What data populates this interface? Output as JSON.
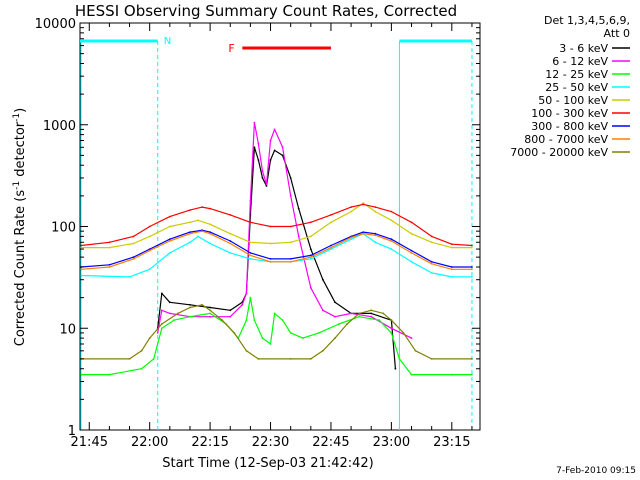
{
  "chart_data": {
    "type": "line",
    "title": "HESSI Observing Summary Count Rates, Corrected",
    "xlabel": "Start Time (12-Sep-03 21:42:42)",
    "ylabel": "Corrected Count Rate (s",
    "ylabel_sup1": "-1",
    "ylabel_mid": " detector",
    "ylabel_sup2": "-1",
    "ylabel_end": ")",
    "footer": "7-Feb-2010 09:15",
    "y_scale": "log",
    "ylim": [
      1,
      10000
    ],
    "xlim": [
      "21:42:42",
      "23:22:00"
    ],
    "x_tick_labels": [
      "21:45",
      "22:00",
      "22:15",
      "22:30",
      "22:45",
      "23:00",
      "23:15"
    ],
    "y_tick_labels": [
      "1",
      "10",
      "100",
      "1000",
      "10000"
    ],
    "legend_header": [
      "Det 1,3,4,5,6,9,",
      "Att 0"
    ],
    "legend_position": "right-outside",
    "annotations": {
      "night_label": "N",
      "night_intervals": [
        [
          "21:42:42",
          "22:02:00"
        ],
        [
          "23:02:00",
          "23:20:00"
        ]
      ],
      "flare_label": "F",
      "flare_interval": [
        "22:23:00",
        "22:45:00"
      ]
    },
    "series": [
      {
        "name": "3 - 6 keV",
        "color": "#000000",
        "points": [
          [
            "22:02",
            10
          ],
          [
            "22:03",
            22
          ],
          [
            "22:05",
            18
          ],
          [
            "22:10",
            17
          ],
          [
            "22:15",
            16
          ],
          [
            "22:20",
            15
          ],
          [
            "22:23",
            18
          ],
          [
            "22:24",
            22
          ],
          [
            "22:25",
            130
          ],
          [
            "22:26",
            600
          ],
          [
            "22:27",
            450
          ],
          [
            "22:28",
            300
          ],
          [
            "22:29",
            250
          ],
          [
            "22:30",
            450
          ],
          [
            "22:31",
            560
          ],
          [
            "22:33",
            500
          ],
          [
            "22:35",
            300
          ],
          [
            "22:37",
            150
          ],
          [
            "22:40",
            60
          ],
          [
            "22:43",
            30
          ],
          [
            "22:46",
            18
          ],
          [
            "22:50",
            14
          ],
          [
            "22:55",
            14
          ],
          [
            "23:00",
            12
          ],
          [
            "23:01",
            4
          ]
        ]
      },
      {
        "name": "6 - 12 keV",
        "color": "#ff00ff",
        "points": [
          [
            "22:02",
            9
          ],
          [
            "22:03",
            15
          ],
          [
            "22:05",
            14
          ],
          [
            "22:10",
            13
          ],
          [
            "22:15",
            13
          ],
          [
            "22:20",
            13
          ],
          [
            "22:23",
            17
          ],
          [
            "22:24",
            22
          ],
          [
            "22:25",
            180
          ],
          [
            "22:26",
            1050
          ],
          [
            "22:27",
            650
          ],
          [
            "22:28",
            350
          ],
          [
            "22:29",
            260
          ],
          [
            "22:30",
            700
          ],
          [
            "22:31",
            900
          ],
          [
            "22:33",
            600
          ],
          [
            "22:35",
            200
          ],
          [
            "22:37",
            80
          ],
          [
            "22:40",
            25
          ],
          [
            "22:43",
            15
          ],
          [
            "22:46",
            13
          ],
          [
            "22:50",
            14
          ],
          [
            "22:55",
            13
          ],
          [
            "23:00",
            10
          ],
          [
            "23:05",
            8
          ]
        ]
      },
      {
        "name": "12 - 25 keV",
        "color": "#00ff00",
        "points": [
          [
            "21:43",
            3.5
          ],
          [
            "21:50",
            3.5
          ],
          [
            "21:58",
            4
          ],
          [
            "22:01",
            5
          ],
          [
            "22:03",
            10
          ],
          [
            "22:06",
            12
          ],
          [
            "22:10",
            13
          ],
          [
            "22:15",
            14
          ],
          [
            "22:19",
            11
          ],
          [
            "22:22",
            8
          ],
          [
            "22:24",
            12
          ],
          [
            "22:25",
            20
          ],
          [
            "22:26",
            12
          ],
          [
            "22:28",
            8
          ],
          [
            "22:30",
            7
          ],
          [
            "22:31",
            14
          ],
          [
            "22:33",
            12
          ],
          [
            "22:35",
            9
          ],
          [
            "22:38",
            8
          ],
          [
            "22:42",
            9
          ],
          [
            "22:47",
            11
          ],
          [
            "22:52",
            13
          ],
          [
            "22:57",
            12
          ],
          [
            "23:00",
            9
          ],
          [
            "23:02",
            5
          ],
          [
            "23:05",
            3.5
          ],
          [
            "23:15",
            3.5
          ],
          [
            "23:20",
            3.5
          ]
        ]
      },
      {
        "name": "25 - 50 keV",
        "color": "#00ffff",
        "points": [
          [
            "21:43",
            33
          ],
          [
            "21:55",
            32
          ],
          [
            "22:00",
            38
          ],
          [
            "22:05",
            55
          ],
          [
            "22:10",
            70
          ],
          [
            "22:12",
            80
          ],
          [
            "22:15",
            68
          ],
          [
            "22:20",
            55
          ],
          [
            "22:25",
            48
          ],
          [
            "22:30",
            45
          ],
          [
            "22:35",
            45
          ],
          [
            "22:40",
            48
          ],
          [
            "22:45",
            60
          ],
          [
            "22:50",
            75
          ],
          [
            "22:53",
            85
          ],
          [
            "22:56",
            70
          ],
          [
            "23:00",
            60
          ],
          [
            "23:05",
            45
          ],
          [
            "23:10",
            35
          ],
          [
            "23:15",
            32
          ],
          [
            "23:20",
            32
          ]
        ]
      },
      {
        "name": "50 - 100 keV",
        "color": "#cccc00",
        "points": [
          [
            "21:43",
            62
          ],
          [
            "21:50",
            62
          ],
          [
            "21:56",
            68
          ],
          [
            "22:00",
            80
          ],
          [
            "22:05",
            100
          ],
          [
            "22:10",
            110
          ],
          [
            "22:12",
            115
          ],
          [
            "22:15",
            105
          ],
          [
            "22:20",
            85
          ],
          [
            "22:25",
            70
          ],
          [
            "22:30",
            68
          ],
          [
            "22:35",
            70
          ],
          [
            "22:40",
            80
          ],
          [
            "22:45",
            110
          ],
          [
            "22:50",
            140
          ],
          [
            "22:53",
            170
          ],
          [
            "22:56",
            140
          ],
          [
            "23:00",
            115
          ],
          [
            "23:05",
            85
          ],
          [
            "23:10",
            70
          ],
          [
            "23:15",
            62
          ],
          [
            "23:20",
            62
          ]
        ]
      },
      {
        "name": "100 - 300 keV",
        "color": "#ff0000",
        "points": [
          [
            "21:43",
            65
          ],
          [
            "21:50",
            70
          ],
          [
            "21:56",
            80
          ],
          [
            "22:00",
            100
          ],
          [
            "22:05",
            125
          ],
          [
            "22:10",
            145
          ],
          [
            "22:13",
            155
          ],
          [
            "22:15",
            150
          ],
          [
            "22:20",
            130
          ],
          [
            "22:25",
            110
          ],
          [
            "22:30",
            100
          ],
          [
            "22:35",
            100
          ],
          [
            "22:40",
            110
          ],
          [
            "22:45",
            130
          ],
          [
            "22:50",
            155
          ],
          [
            "22:53",
            165
          ],
          [
            "22:56",
            155
          ],
          [
            "23:00",
            140
          ],
          [
            "23:05",
            110
          ],
          [
            "23:10",
            80
          ],
          [
            "23:15",
            67
          ],
          [
            "23:20",
            65
          ]
        ]
      },
      {
        "name": "300 - 800 keV",
        "color": "#0000ff",
        "points": [
          [
            "21:43",
            40
          ],
          [
            "21:50",
            42
          ],
          [
            "21:56",
            50
          ],
          [
            "22:00",
            60
          ],
          [
            "22:05",
            75
          ],
          [
            "22:10",
            88
          ],
          [
            "22:13",
            92
          ],
          [
            "22:15",
            88
          ],
          [
            "22:20",
            72
          ],
          [
            "22:25",
            55
          ],
          [
            "22:30",
            48
          ],
          [
            "22:35",
            48
          ],
          [
            "22:40",
            52
          ],
          [
            "22:45",
            65
          ],
          [
            "22:50",
            80
          ],
          [
            "22:53",
            88
          ],
          [
            "22:56",
            85
          ],
          [
            "23:00",
            75
          ],
          [
            "23:05",
            58
          ],
          [
            "23:10",
            45
          ],
          [
            "23:15",
            40
          ],
          [
            "23:20",
            40
          ]
        ]
      },
      {
        "name": "800 - 7000 keV",
        "color": "#ff8000",
        "points": [
          [
            "21:43",
            38
          ],
          [
            "21:50",
            40
          ],
          [
            "21:56",
            48
          ],
          [
            "22:00",
            58
          ],
          [
            "22:05",
            72
          ],
          [
            "22:10",
            85
          ],
          [
            "22:13",
            90
          ],
          [
            "22:15",
            85
          ],
          [
            "22:20",
            68
          ],
          [
            "22:25",
            52
          ],
          [
            "22:30",
            45
          ],
          [
            "22:35",
            45
          ],
          [
            "22:40",
            50
          ],
          [
            "22:45",
            62
          ],
          [
            "22:50",
            78
          ],
          [
            "22:53",
            85
          ],
          [
            "22:56",
            82
          ],
          [
            "23:00",
            72
          ],
          [
            "23:05",
            55
          ],
          [
            "23:10",
            43
          ],
          [
            "23:15",
            38
          ],
          [
            "23:20",
            38
          ]
        ]
      },
      {
        "name": "7000 - 20000 keV",
        "color": "#808000",
        "points": [
          [
            "21:43",
            5
          ],
          [
            "21:55",
            5
          ],
          [
            "21:58",
            6
          ],
          [
            "22:00",
            8
          ],
          [
            "22:03",
            11
          ],
          [
            "22:07",
            14
          ],
          [
            "22:10",
            16
          ],
          [
            "22:13",
            17
          ],
          [
            "22:15",
            15
          ],
          [
            "22:18",
            12
          ],
          [
            "22:21",
            9
          ],
          [
            "22:24",
            6
          ],
          [
            "22:27",
            5
          ],
          [
            "22:35",
            5
          ],
          [
            "22:40",
            5
          ],
          [
            "22:43",
            6
          ],
          [
            "22:46",
            8
          ],
          [
            "22:49",
            11
          ],
          [
            "22:52",
            14
          ],
          [
            "22:55",
            15
          ],
          [
            "22:58",
            14
          ],
          [
            "23:00",
            12
          ],
          [
            "23:03",
            9
          ],
          [
            "23:06",
            6
          ],
          [
            "23:10",
            5
          ],
          [
            "23:20",
            5
          ]
        ]
      }
    ]
  }
}
